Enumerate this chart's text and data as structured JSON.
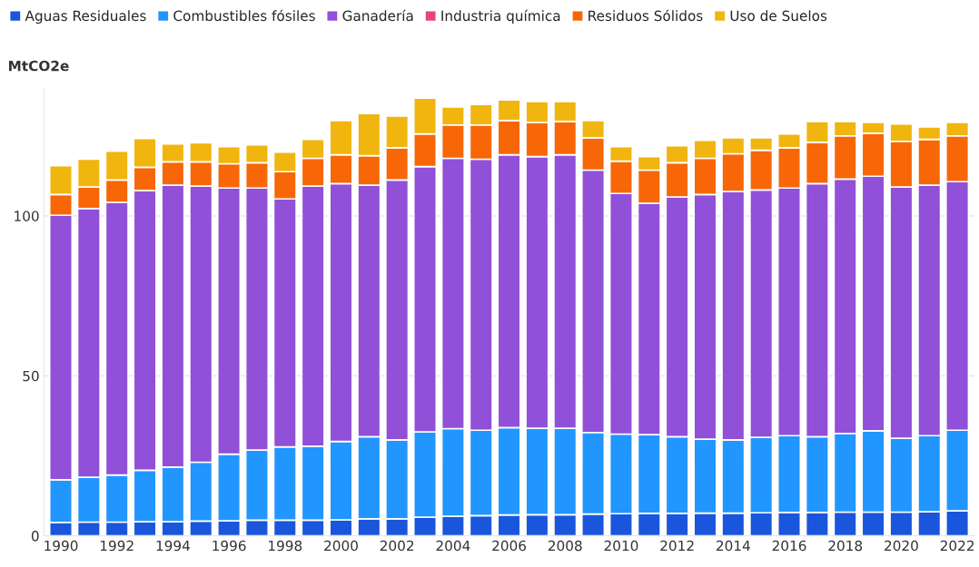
{
  "chart_data": {
    "type": "bar",
    "stacked": true,
    "ylabel": "MtCO2e",
    "categories": [
      "1990",
      null,
      "1992",
      null,
      "1994",
      null,
      "1996",
      null,
      "1998",
      null,
      "2000",
      null,
      "2002",
      null,
      "2004",
      null,
      "2006",
      null,
      "2008",
      null,
      "2010",
      null,
      "2012",
      null,
      "2014",
      null,
      "2016",
      null,
      "2018",
      null,
      "2020",
      null,
      "2022"
    ],
    "series": [
      {
        "name": "Aguas Residuales",
        "color": "#1a56db",
        "values": [
          4.2,
          4.3,
          4.3,
          4.4,
          4.4,
          4.6,
          4.7,
          4.9,
          4.9,
          4.9,
          5.0,
          5.3,
          5.3,
          5.8,
          6.1,
          6.3,
          6.5,
          6.6,
          6.6,
          6.8,
          6.9,
          7.0,
          7.0,
          7.1,
          7.1,
          7.2,
          7.3,
          7.3,
          7.4,
          7.4,
          7.4,
          7.5,
          7.8
        ]
      },
      {
        "name": "Combustibles fósiles",
        "color": "#2196ff",
        "values": [
          13.3,
          14.0,
          14.7,
          16.1,
          17.1,
          18.4,
          20.8,
          21.9,
          22.9,
          23.1,
          24.5,
          25.7,
          24.7,
          26.7,
          27.4,
          26.7,
          27.3,
          27.0,
          27.0,
          25.5,
          24.9,
          24.6,
          24.0,
          23.1,
          22.9,
          23.6,
          24.0,
          23.7,
          24.6,
          25.4,
          23.1,
          23.8,
          25.2
        ]
      },
      {
        "name": "Ganadería",
        "color": "#9150d8",
        "values": [
          82.7,
          84.0,
          85.2,
          87.4,
          88.1,
          86.3,
          83.2,
          81.9,
          77.5,
          81.3,
          80.6,
          78.6,
          81.2,
          82.9,
          84.5,
          84.7,
          85.3,
          84.9,
          85.5,
          82.0,
          75.2,
          72.3,
          74.9,
          76.5,
          77.6,
          77.3,
          77.4,
          79.1,
          79.5,
          79.6,
          78.5,
          78.3,
          77.7
        ]
      },
      {
        "name": "Industria química",
        "color": "#e8457a",
        "values": [
          null,
          null,
          null,
          null,
          null,
          null,
          null,
          null,
          null,
          null,
          null,
          null,
          null,
          null,
          null,
          null,
          null,
          null,
          null,
          null,
          null,
          null,
          null,
          null,
          null,
          null,
          null,
          null,
          null,
          null,
          null,
          null,
          null
        ]
      },
      {
        "name": "Residuos Sólidos",
        "color": "#f76707",
        "values": [
          6.5,
          6.7,
          7.0,
          7.3,
          7.3,
          7.6,
          7.6,
          7.9,
          8.5,
          8.7,
          9.0,
          9.2,
          10.1,
          10.2,
          10.4,
          10.7,
          10.7,
          10.7,
          10.4,
          10.1,
          10.1,
          10.4,
          10.7,
          11.3,
          11.8,
          12.4,
          12.6,
          12.9,
          13.5,
          13.4,
          14.3,
          14.3,
          14.3
        ]
      },
      {
        "name": "Uso de Suelos",
        "color": "#f0b50f",
        "values": [
          9.0,
          8.7,
          9.0,
          9.0,
          5.6,
          5.9,
          5.3,
          5.6,
          6.1,
          5.9,
          10.7,
          13.2,
          9.9,
          11.2,
          5.6,
          6.4,
          6.4,
          6.5,
          6.2,
          5.4,
          4.5,
          4.2,
          5.3,
          5.6,
          5.0,
          3.9,
          4.3,
          6.5,
          4.5,
          3.4,
          5.4,
          3.9,
          4.2
        ]
      }
    ],
    "ylim": [
      0,
      140
    ],
    "yticks": [
      0,
      50,
      100
    ],
    "grid": "y",
    "legend": "top left"
  }
}
